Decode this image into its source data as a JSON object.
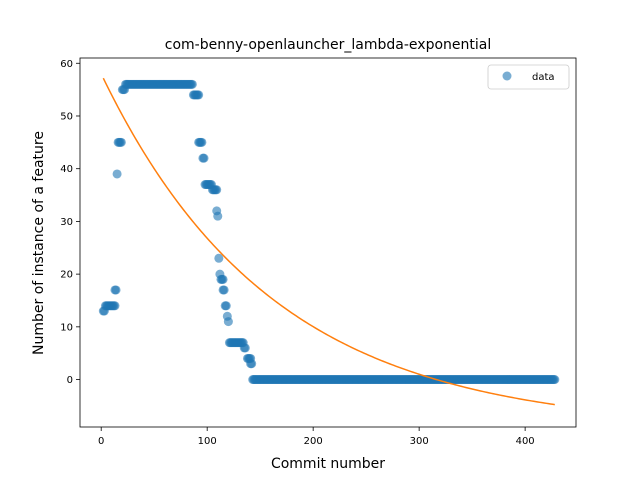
{
  "chart_data": {
    "type": "scatter",
    "title": "com-benny-openlauncher_lambda-exponential",
    "xlabel": "Commit number",
    "ylabel": "Number of instance of a feature",
    "xlim": [
      -20,
      448
    ],
    "ylim": [
      -9,
      61
    ],
    "xticks": [
      0,
      100,
      200,
      300,
      400
    ],
    "yticks": [
      0,
      10,
      20,
      30,
      40,
      50,
      60
    ],
    "grid": false,
    "legend_position": "top-right",
    "series": [
      {
        "name": "data",
        "kind": "scatter",
        "color": "#1f77b4",
        "segments": [
          {
            "x_from": 2,
            "x_to": 3,
            "y": 13
          },
          {
            "x_from": 4,
            "x_to": 13,
            "y": 14
          },
          {
            "x_from": 13,
            "x_to": 14,
            "y": 17
          },
          {
            "x_from": 15,
            "x_to": 15,
            "y": 39
          },
          {
            "x_from": 16,
            "x_to": 19,
            "y": 45
          },
          {
            "x_from": 20,
            "x_to": 22,
            "y": 55
          },
          {
            "x_from": 23,
            "x_to": 86,
            "y": 56
          },
          {
            "x_from": 87,
            "x_to": 92,
            "y": 54
          },
          {
            "x_from": 92,
            "x_to": 95,
            "y": 45
          },
          {
            "x_from": 96,
            "x_to": 97,
            "y": 42
          },
          {
            "x_from": 98,
            "x_to": 104,
            "y": 37
          },
          {
            "x_from": 105,
            "x_to": 109,
            "y": 36
          },
          {
            "x_from": 109,
            "x_to": 109,
            "y": 32
          },
          {
            "x_from": 110,
            "x_to": 110,
            "y": 31
          },
          {
            "x_from": 111,
            "x_to": 111,
            "y": 23
          },
          {
            "x_from": 112,
            "x_to": 112,
            "y": 20
          },
          {
            "x_from": 113,
            "x_to": 115,
            "y": 19
          },
          {
            "x_from": 115,
            "x_to": 116,
            "y": 17
          },
          {
            "x_from": 117,
            "x_to": 118,
            "y": 14
          },
          {
            "x_from": 119,
            "x_to": 119,
            "y": 12
          },
          {
            "x_from": 120,
            "x_to": 120,
            "y": 11
          },
          {
            "x_from": 121,
            "x_to": 134,
            "y": 7
          },
          {
            "x_from": 135,
            "x_to": 136,
            "y": 6
          },
          {
            "x_from": 138,
            "x_to": 141,
            "y": 4
          },
          {
            "x_from": 141,
            "x_to": 142,
            "y": 3
          },
          {
            "x_from": 143,
            "x_to": 428,
            "y": 0
          }
        ]
      },
      {
        "name": "",
        "kind": "line",
        "color": "#ff7f0e",
        "model": "exponential",
        "a": 67.5,
        "b": 0.0062,
        "c": -9.5,
        "x_range": [
          2,
          428
        ]
      }
    ]
  }
}
